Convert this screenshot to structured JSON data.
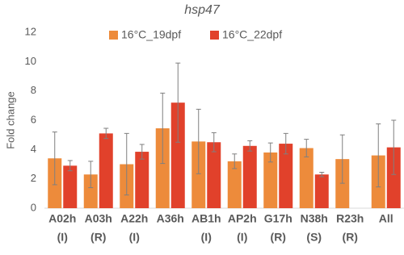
{
  "chart_data": {
    "type": "bar",
    "title": "hsp47",
    "y_label": "Fold change",
    "categories": [
      "A02h",
      "A03h",
      "A22h",
      "A36h",
      "AB1h",
      "AP2h",
      "G17h",
      "N38h",
      "R23h",
      "All"
    ],
    "category_sublabels": [
      "(I)",
      "(R)",
      "(I)",
      "",
      "(I)",
      "(I)",
      "(R)",
      "(S)",
      "(R)",
      ""
    ],
    "series": [
      {
        "name": "16°C_19dpf",
        "color": "#ed8b3b",
        "values": [
          3.4,
          2.3,
          3.0,
          5.45,
          4.55,
          3.2,
          3.8,
          4.1,
          3.35,
          3.6
        ],
        "errors": [
          1.8,
          0.9,
          2.1,
          2.4,
          2.2,
          0.5,
          0.65,
          0.6,
          1.65,
          2.15
        ]
      },
      {
        "name": "16°C_22dpf",
        "color": "#e1412b",
        "values": [
          2.9,
          5.1,
          3.85,
          7.2,
          4.5,
          4.25,
          4.4,
          2.3,
          null,
          4.15
        ],
        "errors": [
          0.35,
          0.35,
          0.5,
          2.7,
          0.65,
          0.35,
          0.7,
          0.15,
          null,
          1.85
        ]
      }
    ],
    "ylim": [
      0,
      12
    ],
    "yticks": [
      0,
      2,
      4,
      6,
      8,
      10,
      12
    ],
    "grid": false,
    "legend": "top"
  }
}
